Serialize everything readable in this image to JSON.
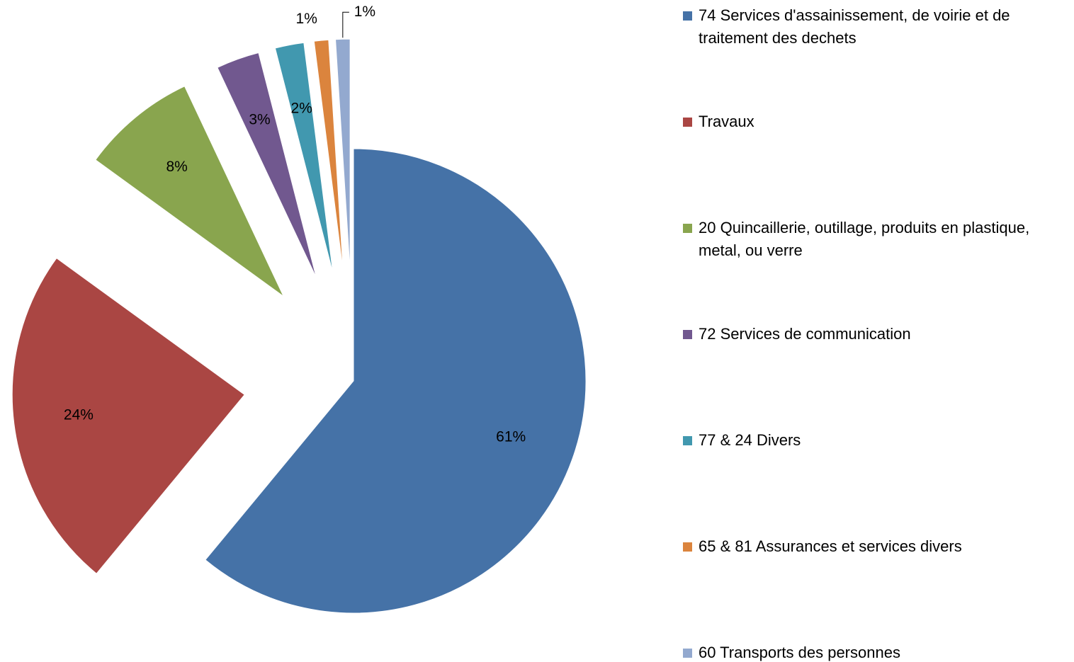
{
  "chart_data": {
    "type": "pie",
    "categories": [
      "74 Services d'assainissement, de voirie et de traitement des dechets",
      "Travaux",
      "20 Quincaillerie, outillage, produits en plastique, metal, ou verre",
      "72 Services de communication",
      "77 & 24 Divers",
      "65 & 81 Assurances et services divers",
      "60 Transports des personnes"
    ],
    "values": [
      61,
      24,
      8,
      3,
      2,
      1,
      1
    ],
    "value_labels": [
      "61%",
      "24%",
      "8%",
      "3%",
      "2%",
      "1%",
      "1%"
    ],
    "colors": [
      "#4572a7",
      "#aa4643",
      "#89a54e",
      "#71588f",
      "#4198af",
      "#db843d",
      "#93a9cf"
    ],
    "legend": "right"
  }
}
